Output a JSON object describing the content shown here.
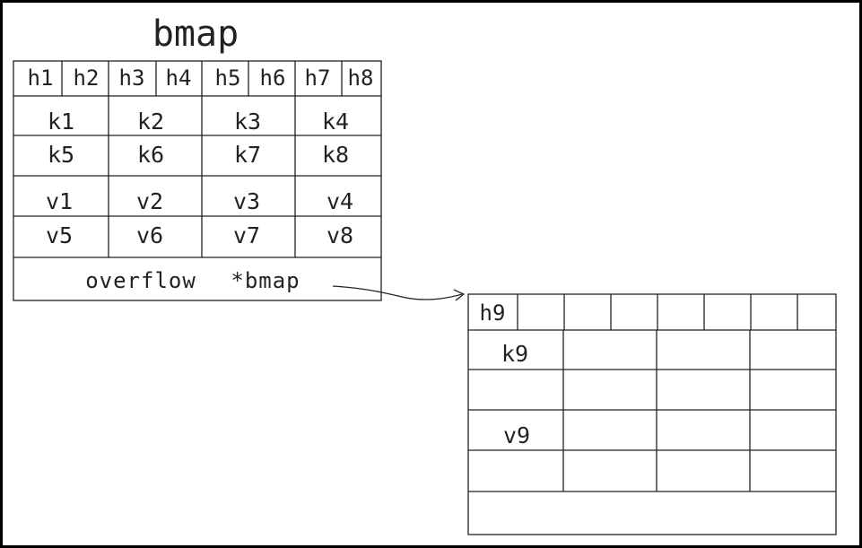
{
  "title": "bmap",
  "main_bucket": {
    "tophash": [
      "h1",
      "h2",
      "h3",
      "h4",
      "h5",
      "h6",
      "h7",
      "h8"
    ],
    "keys": [
      [
        "k1",
        "k2",
        "k3",
        "k4"
      ],
      [
        "k5",
        "k6",
        "k7",
        "k8"
      ]
    ],
    "values": [
      [
        "v1",
        "v2",
        "v3",
        "v4"
      ],
      [
        "v5",
        "v6",
        "v7",
        "v8"
      ]
    ],
    "overflow_label": "overflow",
    "overflow_pointer": "*bmap"
  },
  "overflow_bucket": {
    "tophash": [
      "h9",
      "",
      "",
      "",
      "",
      "",
      "",
      ""
    ],
    "keys": [
      [
        "k9",
        "",
        "",
        ""
      ],
      [
        "",
        "",
        "",
        ""
      ]
    ],
    "values": [
      [
        "v9",
        "",
        "",
        ""
      ],
      [
        "",
        "",
        "",
        ""
      ]
    ]
  },
  "colors": {
    "line": "#222222",
    "border": "#000000",
    "background": "#ffffff"
  }
}
